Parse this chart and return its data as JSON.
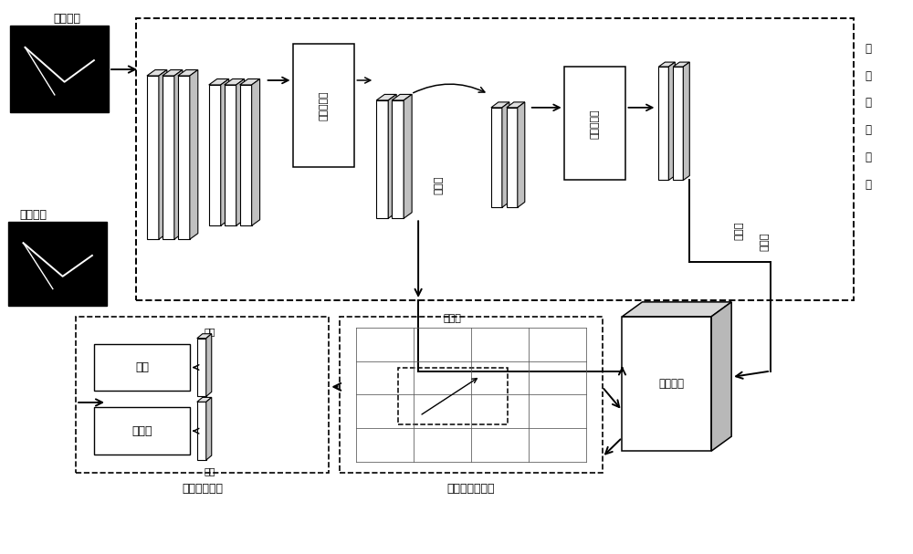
{
  "bg_color": "#ffffff",
  "labels": {
    "input_image": "输入图像",
    "output_result": "输出结果",
    "attention1": "注意力机制",
    "attention2": "注意力机制",
    "feature_extract": "特征提取模块",
    "downsample": "下采样",
    "upsample": "上采样",
    "feature_fusion": "特征融合",
    "prior_box_module": "先验框生成模块",
    "detect_locate": "识别定位模块",
    "position": "位置",
    "confidence": "置信度",
    "conv1": "卷积",
    "conv2": "卷积",
    "prior_box_label": "先验框"
  },
  "fig_w": 10.0,
  "fig_h": 6.07,
  "dpi": 100
}
